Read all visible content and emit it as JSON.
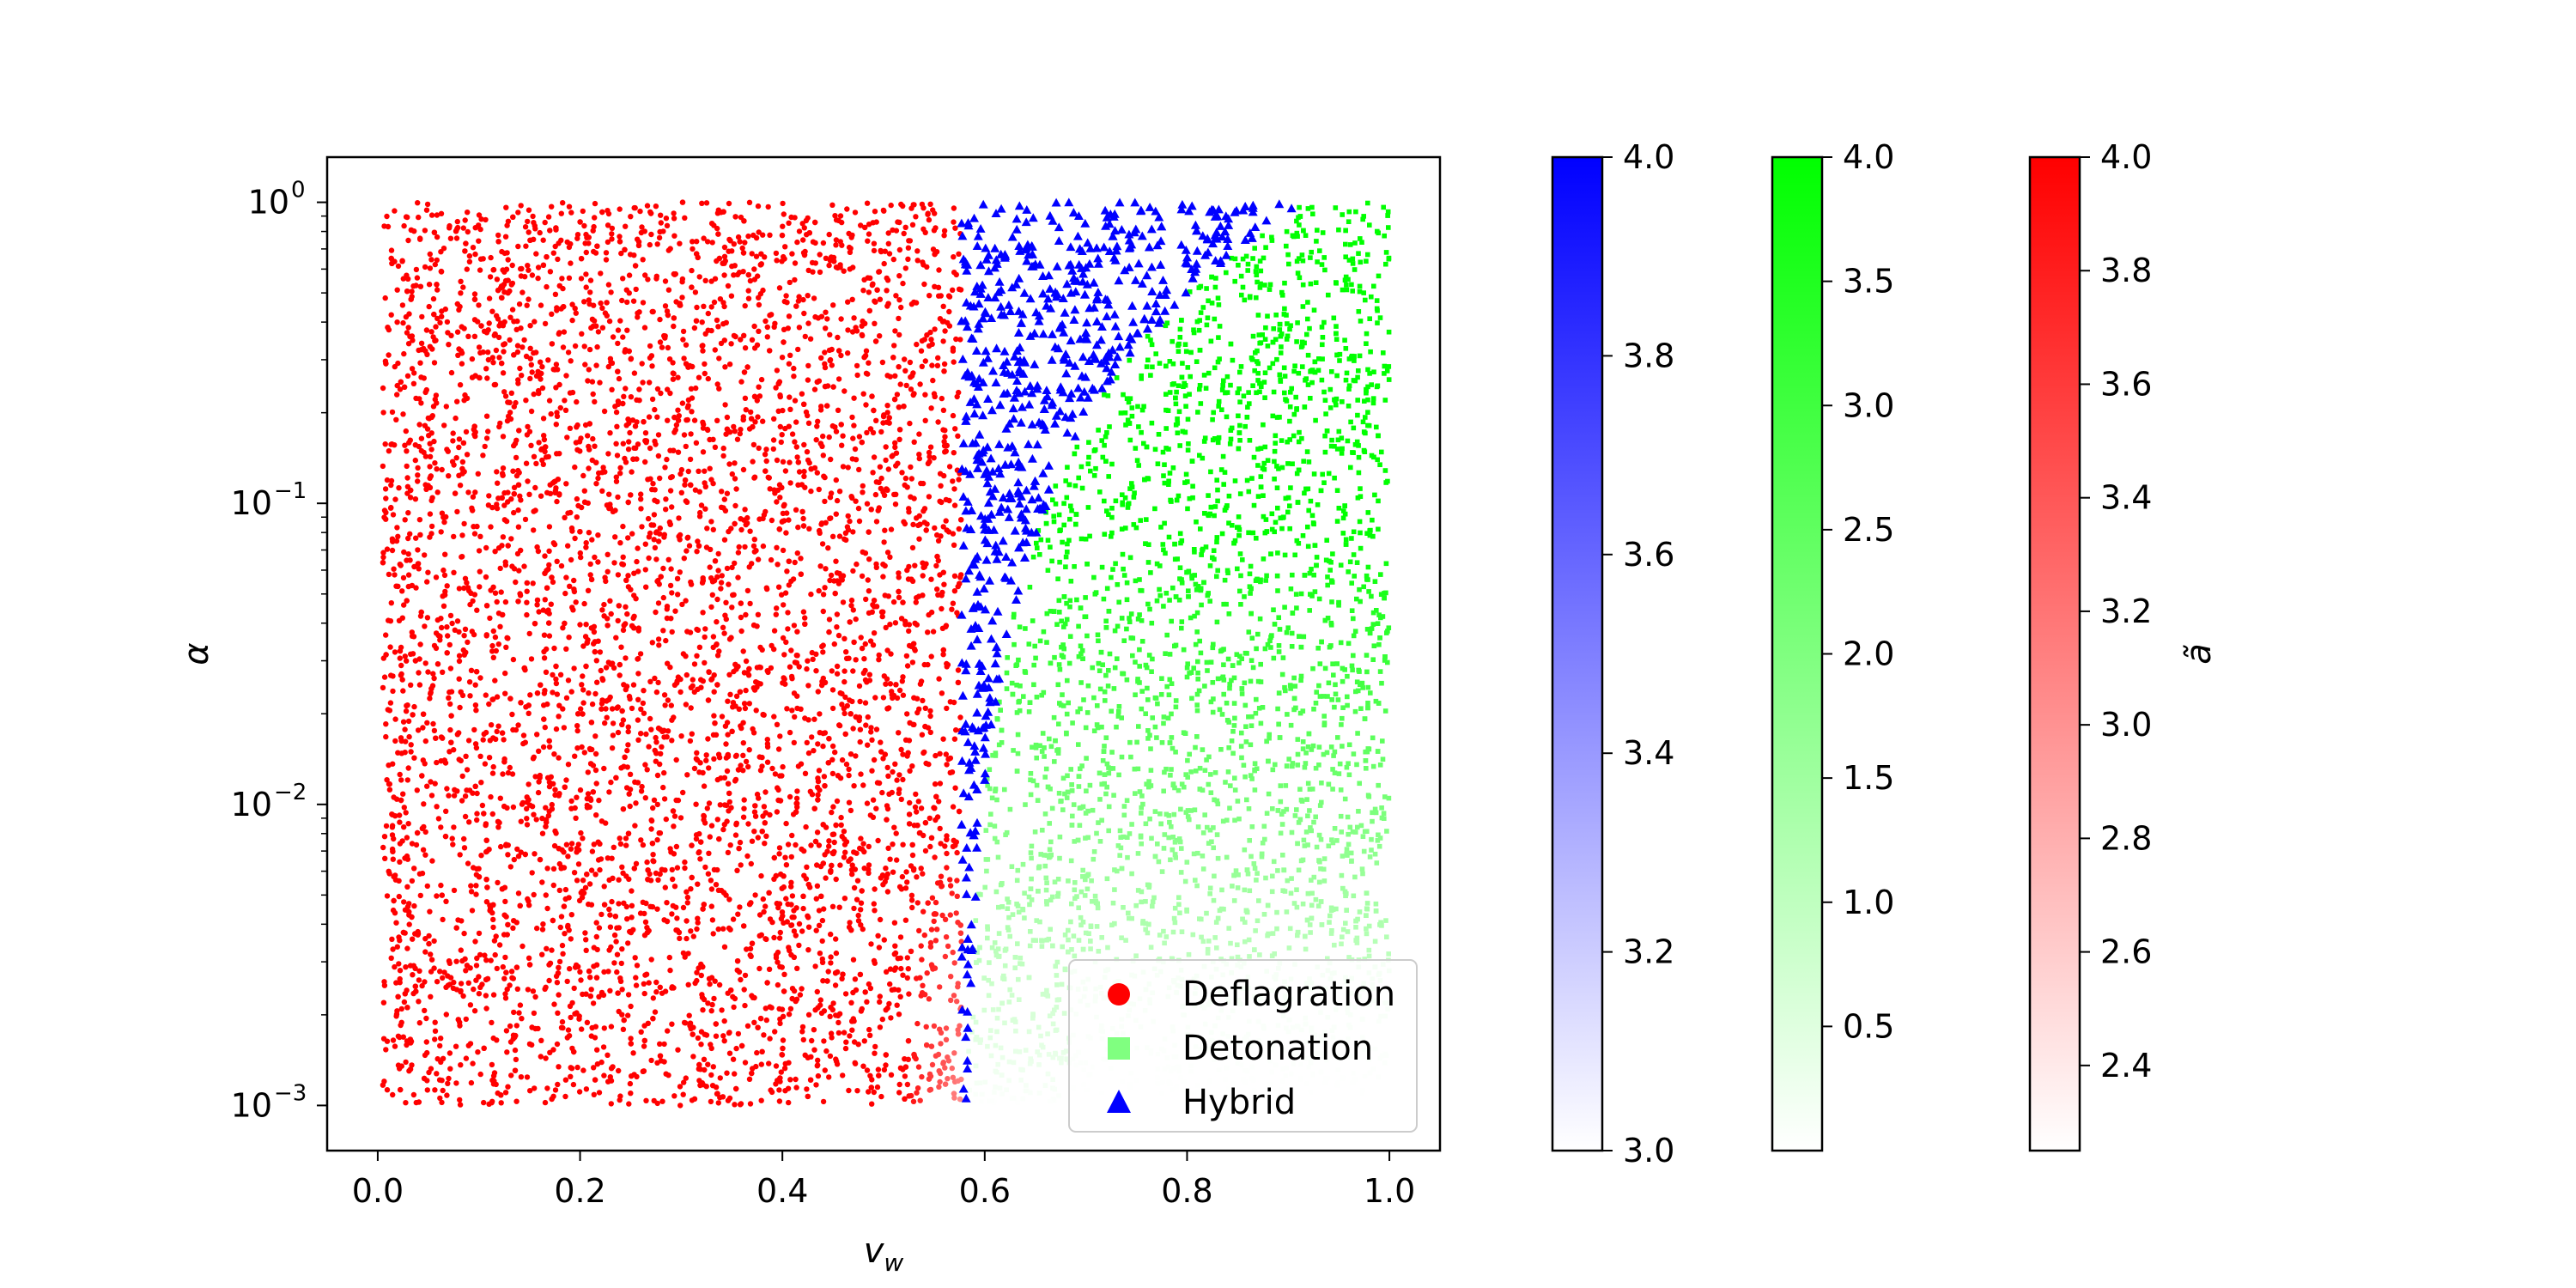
{
  "chart_data": {
    "type": "scatter",
    "title": "",
    "xlabel": "v_w",
    "ylabel": "α",
    "x_lim": [
      -0.05,
      1.05
    ],
    "y_lim_log10": [
      -3.15,
      0.15
    ],
    "y_scale": "log",
    "grid": false,
    "legend_position": "lower-right",
    "x_ticks": [
      {
        "value": 0.0,
        "label": "0.0"
      },
      {
        "value": 0.2,
        "label": "0.2"
      },
      {
        "value": 0.4,
        "label": "0.4"
      },
      {
        "value": 0.6,
        "label": "0.6"
      },
      {
        "value": 0.8,
        "label": "0.8"
      },
      {
        "value": 1.0,
        "label": "1.0"
      }
    ],
    "y_ticks": [
      {
        "value": 1,
        "base": "10",
        "exp": "0"
      },
      {
        "value": 0.1,
        "base": "10",
        "exp": "−1"
      },
      {
        "value": 0.01,
        "base": "10",
        "exp": "−2"
      },
      {
        "value": 0.001,
        "base": "10",
        "exp": "−3"
      }
    ],
    "series": [
      {
        "name": "Deflagration",
        "marker": "circle",
        "color": "#ff0000",
        "region": "0 ≤ v_w ≤ 0.58 (c_s), 10^-3 ≤ α ≤ 1",
        "colorbar_range": [
          2.25,
          4.0
        ]
      },
      {
        "name": "Detonation",
        "marker": "square",
        "legend_color": "#80ff80",
        "color": "#00ff00",
        "region": "v_w above Jouguet velocity up to 1.0, 10^-3 ≤ α ≤ 1",
        "colorbar_range": [
          0.0,
          4.0
        ]
      },
      {
        "name": "Hybrid",
        "marker": "triangle",
        "color": "#0000ff",
        "region": "0.58 ≤ v_w ≤ Jouguet velocity, 10^-3 ≤ α ≤ 1",
        "colorbar_range": [
          3.0,
          4.0
        ]
      }
    ],
    "colorbars": [
      {
        "name": "blue",
        "color": "#0000ff",
        "range": [
          3.0,
          4.0
        ],
        "ticks": [
          "3.0",
          "3.2",
          "3.4",
          "3.6",
          "3.8",
          "4.0"
        ],
        "tick_values": [
          3.0,
          3.2,
          3.4,
          3.6,
          3.8,
          4.0
        ],
        "label": ""
      },
      {
        "name": "green",
        "color": "#00ff00",
        "range": [
          0.0,
          4.0
        ],
        "ticks": [
          "0.5",
          "1.0",
          "1.5",
          "2.0",
          "2.5",
          "3.0",
          "3.5",
          "4.0"
        ],
        "tick_values": [
          0.5,
          1.0,
          1.5,
          2.0,
          2.5,
          3.0,
          3.5,
          4.0
        ],
        "label": ""
      },
      {
        "name": "red",
        "color": "#ff0000",
        "range": [
          2.25,
          4.0
        ],
        "ticks": [
          "2.4",
          "2.6",
          "2.8",
          "3.0",
          "3.2",
          "3.4",
          "3.6",
          "3.8",
          "4.0"
        ],
        "tick_values": [
          2.4,
          2.6,
          2.8,
          3.0,
          3.2,
          3.4,
          3.6,
          3.8,
          4.0
        ],
        "label": "ã"
      }
    ]
  }
}
